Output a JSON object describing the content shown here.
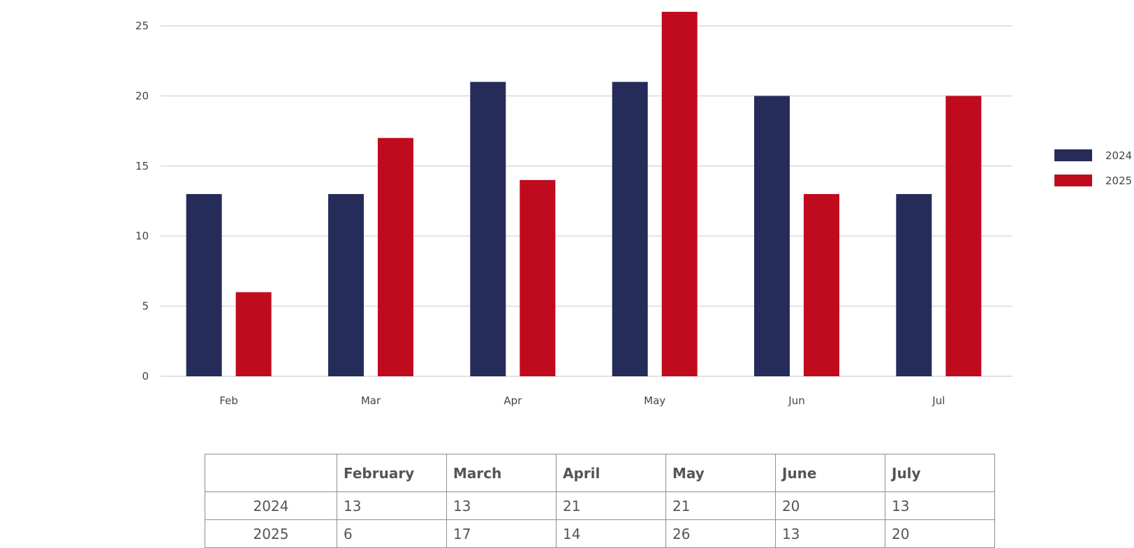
{
  "chart_data": {
    "type": "bar",
    "categories": [
      "Feb",
      "Mar",
      "Apr",
      "May",
      "Jun",
      "Jul"
    ],
    "series": [
      {
        "name": "2024",
        "color": "#252c5a",
        "values": [
          13,
          13,
          21,
          21,
          20,
          13
        ]
      },
      {
        "name": "2025",
        "color": "#c00a1d",
        "values": [
          6,
          17,
          14,
          26,
          13,
          20
        ]
      }
    ],
    "ylim": [
      0,
      26
    ],
    "yticks": [
      0,
      5,
      10,
      15,
      20,
      25
    ],
    "grid": true,
    "legend": "right"
  },
  "table": {
    "headers": [
      "",
      "February",
      "March",
      "April",
      "May",
      "June",
      "July"
    ],
    "rows": [
      {
        "label": "2024",
        "cells": [
          "13",
          "13",
          "21",
          "21",
          "20",
          "13"
        ]
      },
      {
        "label": "2025",
        "cells": [
          "6",
          "17",
          "14",
          "26",
          "13",
          "20"
        ]
      }
    ]
  }
}
